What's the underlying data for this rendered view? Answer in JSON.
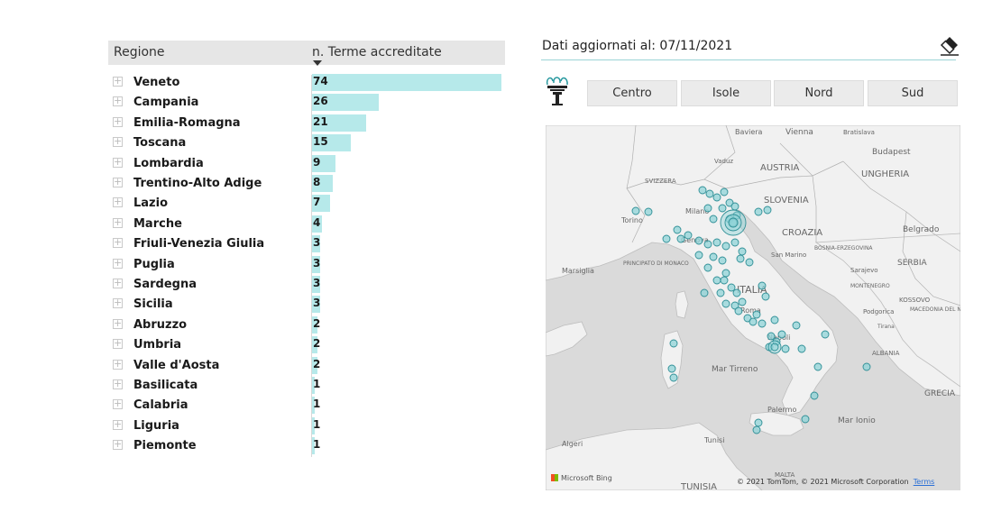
{
  "table": {
    "header_region": "Regione",
    "header_count": "n. Terme accreditate",
    "expand_glyph": "+"
  },
  "chart_data": {
    "type": "bar",
    "orientation": "horizontal",
    "categories": [
      "Veneto",
      "Campania",
      "Emilia-Romagna",
      "Toscana",
      "Lombardia",
      "Trentino-Alto Adige",
      "Lazio",
      "Marche",
      "Friuli-Venezia Giulia",
      "Puglia",
      "Sardegna",
      "Sicilia",
      "Abruzzo",
      "Umbria",
      "Valle d'Aosta",
      "Basilicata",
      "Calabria",
      "Liguria",
      "Piemonte"
    ],
    "values": [
      74,
      26,
      21,
      15,
      9,
      8,
      7,
      4,
      3,
      3,
      3,
      3,
      2,
      2,
      2,
      1,
      1,
      1,
      1
    ],
    "bar_color": "#b6e9ea",
    "sort": "descending"
  },
  "right_panel": {
    "title": "Dati aggiornati al: 07/11/2021",
    "slicer_options": [
      "Centro",
      "Isole",
      "Nord",
      "Sud"
    ],
    "accent_color": "#9bd3d6"
  },
  "map": {
    "credit": "© 2021 TomTom, © 2021 Microsoft Corporation",
    "terms": "Terms",
    "bing": "Microsoft Bing",
    "labels": [
      {
        "text": "Baviera"
      },
      {
        "text": "Vienna"
      },
      {
        "text": "Bratislava"
      },
      {
        "text": "Budapest"
      },
      {
        "text": "AUSTRIA"
      },
      {
        "text": "UNGHERIA"
      },
      {
        "text": "Vaduz"
      },
      {
        "text": "SVIZZERA"
      },
      {
        "text": "SLOVENIA"
      },
      {
        "text": "Torino"
      },
      {
        "text": "Milano"
      },
      {
        "text": "CROAZIA"
      },
      {
        "text": "Belgrado"
      },
      {
        "text": "Genova"
      },
      {
        "text": "San Marino"
      },
      {
        "text": "BOSNIA-ERZEGOVINA"
      },
      {
        "text": "Marsiglia"
      },
      {
        "text": "PRINCIPATO DI MONACO"
      },
      {
        "text": "SERBIA"
      },
      {
        "text": "Sarajevo"
      },
      {
        "text": "MONTENEGRO"
      },
      {
        "text": "ITALIA"
      },
      {
        "text": "KOSSOVO"
      },
      {
        "text": "Podgorica"
      },
      {
        "text": "MACEDONIA DEL NORD"
      },
      {
        "text": "Tirana"
      },
      {
        "text": "Roma"
      },
      {
        "text": "Napoli"
      },
      {
        "text": "ALBANIA"
      },
      {
        "text": "Mar Tirreno"
      },
      {
        "text": "GRECIA"
      },
      {
        "text": "Palermo"
      },
      {
        "text": "Mar Ionio"
      },
      {
        "text": "Algeri"
      },
      {
        "text": "Tunisi"
      },
      {
        "text": "MALTA"
      },
      {
        "text": "TUNISIA"
      }
    ]
  }
}
